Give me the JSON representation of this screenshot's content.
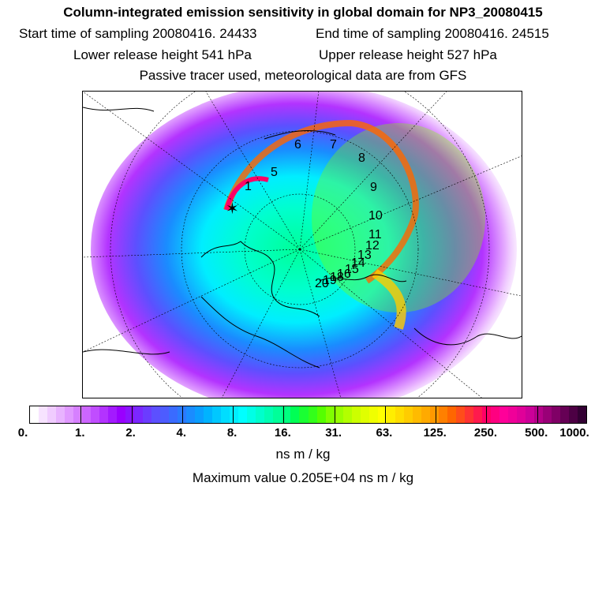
{
  "header": {
    "title": "Column-integrated emission sensitivity in global domain for NP3_20080415",
    "start_label": "Start time of sampling 20080416. 24433",
    "end_label": "End time of sampling 20080416. 24515",
    "lower_label": "Lower release height  541 hPa",
    "upper_label": "Upper release height  527 hPa",
    "tracer_note": "Passive tracer used, meteorological data are from GFS"
  },
  "map": {
    "trajectory_labels": [
      "1",
      "5",
      "6",
      "7",
      "8",
      "9",
      "10",
      "11",
      "12",
      "13",
      "14",
      "15",
      "16",
      "18",
      "19",
      "20"
    ]
  },
  "colorbar": {
    "labels": [
      "0.",
      "1.",
      "2.",
      "4.",
      "8.",
      "16.",
      "31.",
      "63.",
      "125.",
      "250.",
      "500.",
      "1000."
    ],
    "colors": [
      "#ffffff",
      "#f7e3ff",
      "#f0ccff",
      "#e8b3ff",
      "#e099ff",
      "#d680ff",
      "#cc66ff",
      "#c04dff",
      "#b333ff",
      "#a31aff",
      "#9900ff",
      "#8a14ff",
      "#7a28ff",
      "#6b3cff",
      "#5c50ff",
      "#4d5cff",
      "#3a6bff",
      "#2b7aff",
      "#1a8cff",
      "#0a9eff",
      "#00b3ff",
      "#00c8ff",
      "#00ddff",
      "#00eeff",
      "#00ffff",
      "#00ffe6",
      "#00ffcc",
      "#00ffb3",
      "#00ff99",
      "#00ff80",
      "#00ff55",
      "#1aff33",
      "#33ff1a",
      "#55ff00",
      "#80ff00",
      "#99ff00",
      "#b3ff00",
      "#ccff00",
      "#e0ff00",
      "#f0ff00",
      "#ffff00",
      "#ffee00",
      "#ffdd00",
      "#ffcc00",
      "#ffbb00",
      "#ffaa00",
      "#ff9900",
      "#ff8000",
      "#ff6600",
      "#ff4d1a",
      "#ff3333",
      "#ff1a4d",
      "#ff0066",
      "#ff0080",
      "#ff0099",
      "#f00099",
      "#e00099",
      "#cc0099",
      "#b30088",
      "#990077",
      "#800066",
      "#660055",
      "#4d0044",
      "#330033"
    ],
    "unit": "ns m / kg",
    "max_value": "Maximum value  0.205E+04 ns m / kg"
  }
}
